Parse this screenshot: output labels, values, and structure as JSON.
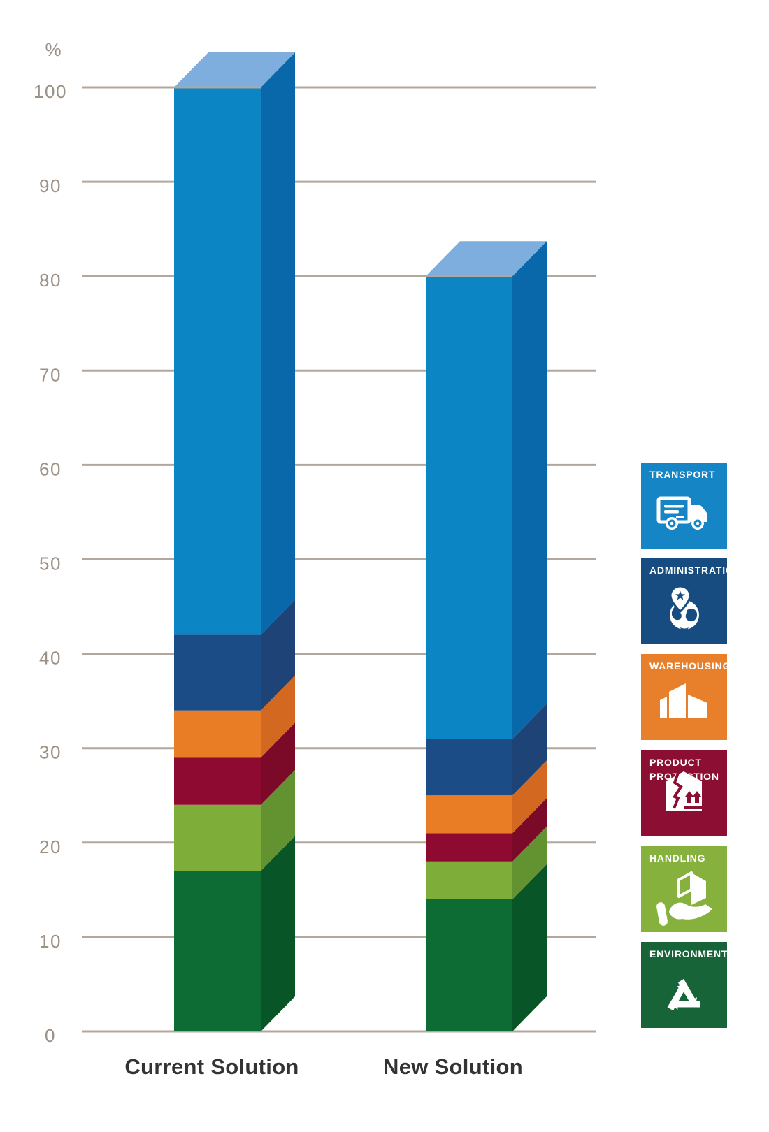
{
  "chart_data": {
    "type": "bar",
    "variant": "3d-stacked-percentage-columns",
    "unit": "%",
    "categories": [
      "Current Solution",
      "New Solution"
    ],
    "series": [
      {
        "name": "Environment",
        "values": [
          17,
          14
        ],
        "color_front": "#0d6b34",
        "color_side": "#085628"
      },
      {
        "name": "Handling",
        "values": [
          7,
          4
        ],
        "color_front": "#7ead3a",
        "color_side": "#639331"
      },
      {
        "name": "Product Protection",
        "values": [
          5,
          3
        ],
        "color_front": "#8e0a31",
        "color_side": "#7b0a28"
      },
      {
        "name": "Warehousing",
        "values": [
          5,
          4
        ],
        "color_front": "#e87d26",
        "color_side": "#d36820"
      },
      {
        "name": "Administration",
        "values": [
          8,
          6
        ],
        "color_front": "#1b4c86",
        "color_side": "#1d4377"
      },
      {
        "name": "Transport",
        "values": [
          58,
          49
        ],
        "color_front": "#0b85c4",
        "color_side": "#0968a9"
      }
    ],
    "totals": [
      100,
      80
    ],
    "ylim": [
      0,
      100
    ],
    "ticks": [
      0,
      10,
      20,
      30,
      40,
      50,
      60,
      70,
      80,
      90,
      100
    ],
    "grid": true,
    "legend_position": "right"
  },
  "legend": {
    "items": [
      {
        "label": "TRANSPORT",
        "lines": [
          "TRANSPORT"
        ],
        "icon": "truck-icon",
        "color": "#1585c5"
      },
      {
        "label": "ADMINISTRATION",
        "lines": [
          "ADMINISTRATION"
        ],
        "icon": "globe-location-pin-icon",
        "color": "#164c80"
      },
      {
        "label": "WAREHOUSING",
        "lines": [
          "WAREHOUSING"
        ],
        "icon": "warehouse-buildings-icon",
        "color": "#e8802b"
      },
      {
        "label": "PRODUCT PROTECTION",
        "lines": [
          "PRODUCT",
          "PROTECTION"
        ],
        "icon": "cracked-box-icon",
        "color": "#8c0e33"
      },
      {
        "label": "HANDLING",
        "lines": [
          "HANDLING"
        ],
        "icon": "hand-holding-box-icon",
        "color": "#86b13d"
      },
      {
        "label": "ENVIRONMENT",
        "lines": [
          "ENVIRONMENT"
        ],
        "icon": "recycle-arrows-icon",
        "color": "#176438"
      }
    ]
  },
  "colors": {
    "background": "#ffffff",
    "gridline": "#b2a79c",
    "axis_text": "#9c9186",
    "category_text": "#333333",
    "legend_text": "#ffffff",
    "bar_top": "#7daede"
  }
}
